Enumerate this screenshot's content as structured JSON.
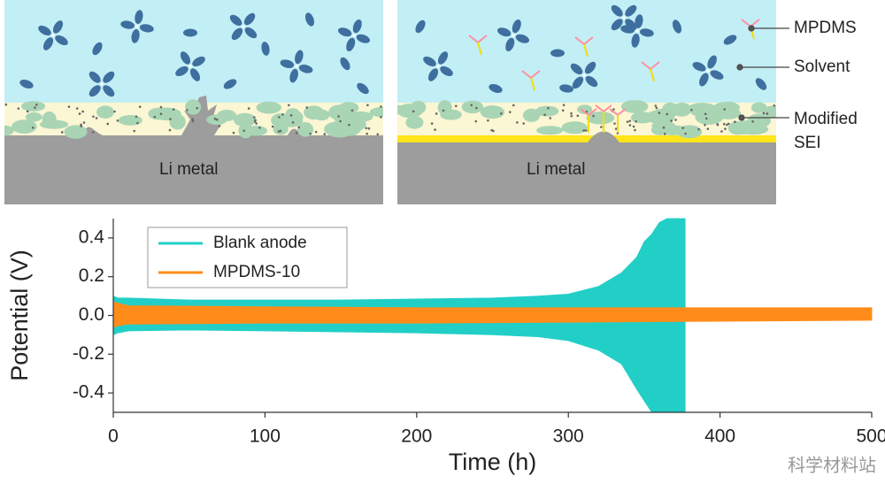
{
  "schematic": {
    "left_label": "Li metal",
    "right_label": "Li metal",
    "labels": {
      "mpdms": "MPDMS",
      "solvent": "Solvent",
      "sei_line1": "Modified",
      "sei_line2": "SEI"
    }
  },
  "chart_data": {
    "type": "band",
    "xlabel": "Time (h)",
    "ylabel": "Potential (V)",
    "xlim": [
      0,
      500
    ],
    "xticks": [
      0,
      100,
      200,
      300,
      400,
      500
    ],
    "ylim": [
      -0.5,
      0.5
    ],
    "yticks": [
      -0.4,
      -0.2,
      {
        "value": 0,
        "label": "0.0"
      },
      0.2,
      0.4
    ],
    "legend": "upper left",
    "series": [
      {
        "name": "Blank anode",
        "color": "#22cfc7",
        "x": [
          0,
          3,
          10,
          50,
          100,
          150,
          200,
          250,
          280,
          300,
          320,
          335,
          345,
          350,
          355,
          360,
          365,
          370,
          375,
          377
        ],
        "upper": [
          0.1,
          0.09,
          0.09,
          0.08,
          0.08,
          0.08,
          0.085,
          0.09,
          0.1,
          0.11,
          0.15,
          0.22,
          0.3,
          0.38,
          0.42,
          0.48,
          0.5,
          0.5,
          0.5,
          0.5
        ],
        "lower": [
          -0.1,
          -0.09,
          -0.08,
          -0.075,
          -0.08,
          -0.085,
          -0.09,
          -0.1,
          -0.11,
          -0.13,
          -0.18,
          -0.25,
          -0.38,
          -0.44,
          -0.5,
          -0.5,
          -0.5,
          -0.5,
          -0.5,
          -0.5
        ]
      },
      {
        "name": "MPDMS-10",
        "color": "#ff8c1a",
        "x": [
          0,
          5,
          10,
          100,
          200,
          300,
          400,
          500
        ],
        "upper": [
          0.07,
          0.06,
          0.05,
          0.045,
          0.04,
          0.04,
          0.04,
          0.04
        ],
        "lower": [
          -0.06,
          -0.05,
          -0.045,
          -0.04,
          -0.04,
          -0.035,
          -0.03,
          -0.025
        ]
      }
    ]
  },
  "watermark": "科学材料站"
}
